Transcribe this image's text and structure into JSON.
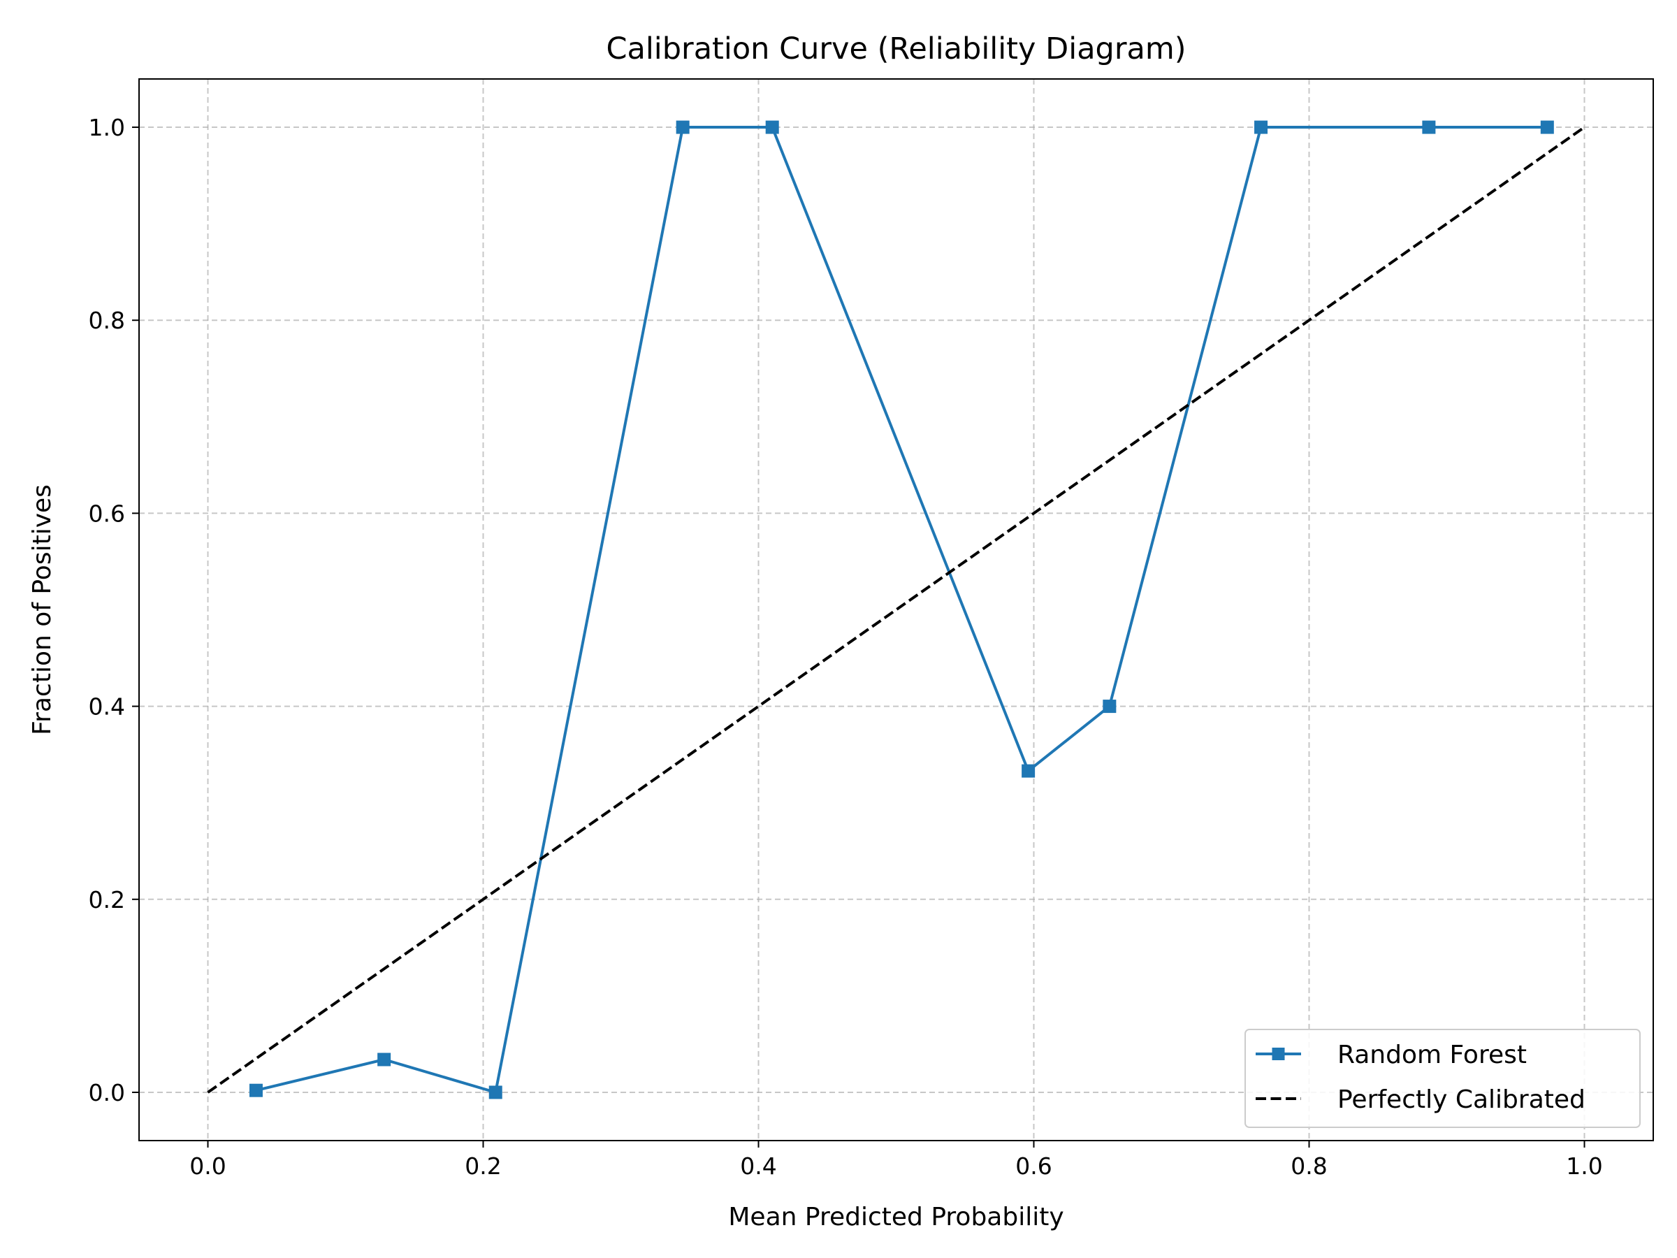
{
  "chart_data": {
    "type": "line",
    "title": "Calibration Curve (Reliability Diagram)",
    "xlabel": "Mean Predicted Probability",
    "ylabel": "Fraction of Positives",
    "xlim": [
      -0.05,
      1.05
    ],
    "ylim": [
      -0.05,
      1.05
    ],
    "xticks": [
      0.0,
      0.2,
      0.4,
      0.6,
      0.8,
      1.0
    ],
    "yticks": [
      0.0,
      0.2,
      0.4,
      0.6,
      0.8,
      1.0
    ],
    "xtick_labels": [
      "0.0",
      "0.2",
      "0.4",
      "0.6",
      "0.8",
      "1.0"
    ],
    "ytick_labels": [
      "0.0",
      "0.2",
      "0.4",
      "0.6",
      "0.8",
      "1.0"
    ],
    "grid": true,
    "legend_position": "lower-right",
    "series": [
      {
        "name": "Random Forest",
        "color": "#1f77b4",
        "marker": "square",
        "linestyle": "solid",
        "x": [
          0.035,
          0.128,
          0.209,
          0.345,
          0.41,
          0.596,
          0.655,
          0.765,
          0.887,
          0.973
        ],
        "y": [
          0.002,
          0.034,
          0.0,
          1.0,
          1.0,
          0.333,
          0.4,
          1.0,
          1.0,
          1.0
        ]
      },
      {
        "name": "Perfectly Calibrated",
        "color": "#000000",
        "marker": "none",
        "linestyle": "dashed",
        "x": [
          0.0,
          1.0
        ],
        "y": [
          0.0,
          1.0
        ]
      }
    ]
  }
}
